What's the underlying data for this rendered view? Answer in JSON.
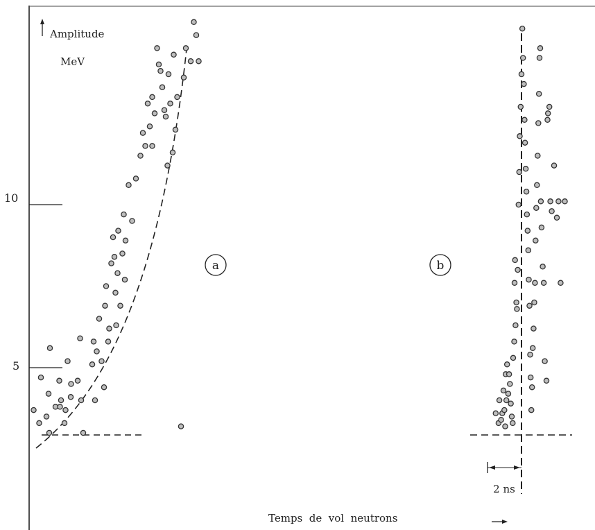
{
  "chart_data": {
    "type": "scatter",
    "ylabel": "Amplitude",
    "yunit": "MeV",
    "xlabel": "Temps  de  vol  neutrons",
    "ytick_labels": [
      "10",
      "5"
    ],
    "yticks": [
      10,
      5
    ],
    "ylim": [
      0.5,
      16.2
    ],
    "scale_bar_label": "2 ns",
    "scale_bar_ns": 2,
    "threshold_mev": 3,
    "panels": [
      {
        "name": "a",
        "fit_curve": "dashed",
        "points": [
          [
            0.03,
            3.7
          ],
          [
            0.19,
            3.3
          ],
          [
            0.24,
            4.7
          ],
          [
            0.4,
            3.5
          ],
          [
            0.46,
            4.2
          ],
          [
            0.48,
            3.0
          ],
          [
            0.5,
            5.6
          ],
          [
            0.66,
            3.8
          ],
          [
            0.77,
            4.6
          ],
          [
            0.79,
            3.8
          ],
          [
            0.82,
            4.0
          ],
          [
            0.92,
            3.3
          ],
          [
            0.95,
            3.7
          ],
          [
            1.01,
            5.2
          ],
          [
            1.11,
            4.5
          ],
          [
            1.1,
            4.1
          ],
          [
            1.3,
            4.6
          ],
          [
            1.37,
            5.9
          ],
          [
            1.4,
            4.0
          ],
          [
            1.46,
            3.0
          ],
          [
            1.72,
            5.1
          ],
          [
            1.76,
            5.8
          ],
          [
            1.8,
            4.0
          ],
          [
            1.85,
            5.5
          ],
          [
            1.92,
            6.5
          ],
          [
            1.99,
            5.2
          ],
          [
            2.06,
            4.4
          ],
          [
            2.09,
            6.9
          ],
          [
            2.12,
            7.5
          ],
          [
            2.18,
            5.8
          ],
          [
            2.21,
            6.2
          ],
          [
            2.27,
            8.2
          ],
          [
            2.32,
            9.0
          ],
          [
            2.36,
            8.4
          ],
          [
            2.39,
            7.3
          ],
          [
            2.41,
            6.3
          ],
          [
            2.45,
            7.9
          ],
          [
            2.47,
            9.2
          ],
          [
            2.53,
            6.9
          ],
          [
            2.59,
            8.5
          ],
          [
            2.63,
            9.7
          ],
          [
            2.66,
            7.7
          ],
          [
            2.68,
            8.9
          ],
          [
            2.77,
            10.6
          ],
          [
            2.87,
            9.5
          ],
          [
            2.98,
            10.8
          ],
          [
            3.11,
            11.5
          ],
          [
            3.18,
            12.2
          ],
          [
            3.25,
            11.8
          ],
          [
            3.32,
            13.1
          ],
          [
            3.38,
            12.4
          ],
          [
            3.45,
            13.3
          ],
          [
            3.45,
            11.8
          ],
          [
            3.52,
            12.8
          ],
          [
            3.59,
            14.8
          ],
          [
            3.64,
            14.3
          ],
          [
            3.69,
            14.1
          ],
          [
            3.74,
            13.6
          ],
          [
            3.8,
            12.9
          ],
          [
            3.84,
            12.7
          ],
          [
            3.89,
            11.2
          ],
          [
            3.92,
            14.0
          ],
          [
            3.97,
            13.1
          ],
          [
            4.04,
            11.6
          ],
          [
            4.07,
            14.6
          ],
          [
            4.12,
            12.3
          ],
          [
            4.17,
            13.3
          ],
          [
            4.28,
            3.2
          ],
          [
            4.36,
            13.9
          ],
          [
            4.42,
            14.8
          ],
          [
            4.56,
            14.4
          ],
          [
            4.65,
            15.6
          ],
          [
            4.72,
            15.2
          ],
          [
            4.79,
            14.4
          ]
        ]
      },
      {
        "name": "b",
        "fit_line": "dashed",
        "points": [
          [
            -1.52,
            3.6
          ],
          [
            -1.35,
            3.3
          ],
          [
            -1.3,
            4.0
          ],
          [
            -1.2,
            3.4
          ],
          [
            -1.13,
            3.6
          ],
          [
            -1.06,
            4.3
          ],
          [
            -1.01,
            3.7
          ],
          [
            -0.96,
            3.2
          ],
          [
            -0.93,
            4.8
          ],
          [
            -0.89,
            4.0
          ],
          [
            -0.85,
            5.1
          ],
          [
            -0.78,
            4.2
          ],
          [
            -0.73,
            4.8
          ],
          [
            -0.68,
            4.5
          ],
          [
            -0.63,
            3.9
          ],
          [
            -0.57,
            3.5
          ],
          [
            -0.52,
            3.3
          ],
          [
            -0.49,
            5.3
          ],
          [
            -0.43,
            5.8
          ],
          [
            -0.41,
            7.6
          ],
          [
            -0.38,
            8.3
          ],
          [
            -0.35,
            6.3
          ],
          [
            -0.3,
            7.0
          ],
          [
            -0.27,
            6.8
          ],
          [
            -0.22,
            8.0
          ],
          [
            -0.17,
            10.0
          ],
          [
            -0.13,
            11.0
          ],
          [
            -0.1,
            12.1
          ],
          [
            -0.05,
            13.0
          ],
          [
            0.0,
            14.0
          ],
          [
            0.05,
            15.4
          ],
          [
            0.09,
            14.5
          ],
          [
            0.14,
            13.7
          ],
          [
            0.18,
            12.6
          ],
          [
            0.21,
            11.9
          ],
          [
            0.25,
            11.1
          ],
          [
            0.29,
            10.4
          ],
          [
            0.32,
            9.7
          ],
          [
            0.36,
            9.2
          ],
          [
            0.4,
            8.6
          ],
          [
            0.43,
            7.7
          ],
          [
            0.47,
            6.9
          ],
          [
            0.51,
            5.4
          ],
          [
            0.54,
            4.7
          ],
          [
            0.58,
            3.7
          ],
          [
            0.62,
            4.4
          ],
          [
            0.66,
            5.6
          ],
          [
            0.71,
            6.2
          ],
          [
            0.75,
            7.0
          ],
          [
            0.79,
            7.6
          ],
          [
            0.83,
            8.9
          ],
          [
            0.87,
            9.9
          ],
          [
            0.91,
            10.6
          ],
          [
            0.95,
            11.5
          ],
          [
            0.99,
            12.5
          ],
          [
            1.03,
            13.4
          ],
          [
            1.06,
            14.5
          ],
          [
            1.1,
            14.8
          ],
          [
            1.14,
            10.1
          ],
          [
            1.18,
            9.3
          ],
          [
            1.25,
            8.1
          ],
          [
            1.31,
            7.6
          ],
          [
            1.37,
            5.2
          ],
          [
            1.47,
            4.6
          ],
          [
            1.53,
            12.6
          ],
          [
            1.56,
            12.8
          ],
          [
            1.64,
            13.0
          ],
          [
            1.7,
            10.1
          ],
          [
            1.78,
            9.8
          ],
          [
            1.92,
            11.2
          ],
          [
            2.08,
            9.6
          ],
          [
            2.18,
            10.1
          ],
          [
            2.3,
            7.6
          ],
          [
            2.55,
            10.1
          ]
        ]
      }
    ]
  },
  "panel_labels": {
    "a": "a",
    "b": "b"
  },
  "scale_bar_label": "2 ns"
}
